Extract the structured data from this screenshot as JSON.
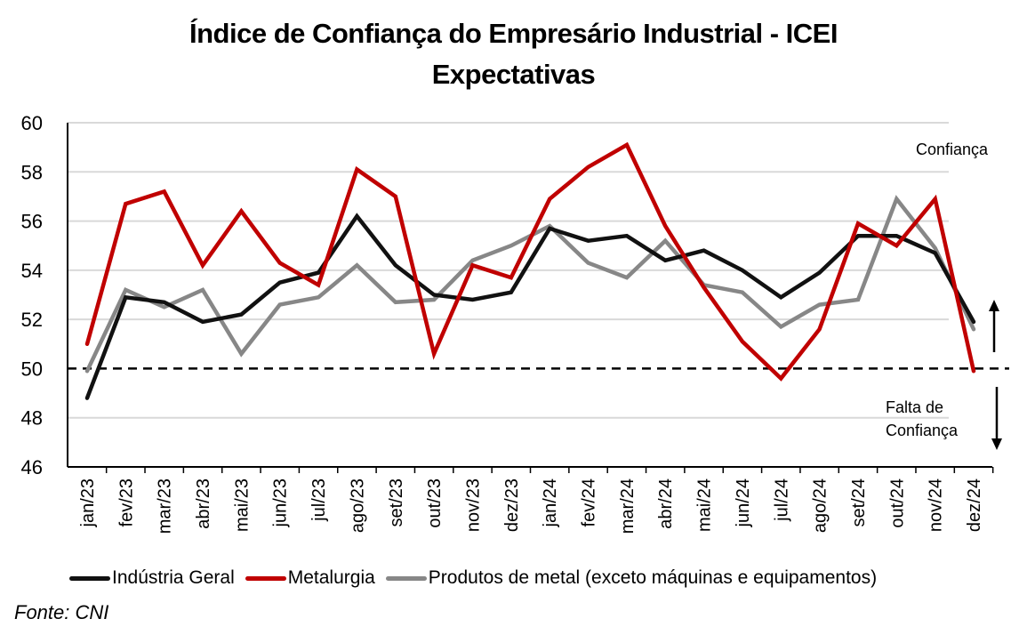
{
  "chart_data": {
    "type": "line",
    "title": "Índice de Confiança do Empresário Industrial - ICEI",
    "subtitle": "Expectativas",
    "xlabel": "",
    "ylabel": "",
    "ylim": [
      46,
      60
    ],
    "yticks": [
      "46",
      "48",
      "50",
      "52",
      "54",
      "56",
      "58",
      "60"
    ],
    "grid": true,
    "legend_position": "bottom",
    "categories": [
      "jan/23",
      "fev/23",
      "mar/23",
      "abr/23",
      "mai/23",
      "jun/23",
      "jul/23",
      "ago/23",
      "set/23",
      "out/23",
      "nov/23",
      "dez/23",
      "jan/24",
      "fev/24",
      "mar/24",
      "abr/24",
      "mai/24",
      "jun/24",
      "jul/24",
      "ago/24",
      "set/24",
      "out/24",
      "nov/24",
      "dez/24"
    ],
    "series": [
      {
        "name": "Indústria Geral",
        "color": "#111111",
        "values": [
          48.8,
          52.9,
          52.7,
          51.9,
          52.2,
          53.5,
          53.9,
          56.2,
          54.2,
          53.0,
          52.8,
          53.1,
          55.7,
          55.2,
          55.4,
          54.4,
          54.8,
          54.0,
          52.9,
          53.9,
          55.4,
          55.4,
          54.7,
          51.9
        ]
      },
      {
        "name": "Metalurgia",
        "color": "#C00000",
        "values": [
          51.0,
          56.7,
          57.2,
          54.2,
          56.4,
          54.3,
          53.4,
          58.1,
          57.0,
          50.6,
          54.2,
          53.7,
          56.9,
          58.2,
          59.1,
          55.8,
          53.3,
          51.1,
          49.6,
          51.6,
          55.9,
          55.0,
          56.9,
          49.9
        ]
      },
      {
        "name": "Produtos de metal (exceto máquinas e equipamentos)",
        "color": "#878787",
        "values": [
          49.9,
          53.2,
          52.5,
          53.2,
          50.6,
          52.6,
          52.9,
          54.2,
          52.7,
          52.8,
          54.4,
          55.0,
          55.8,
          54.3,
          53.7,
          55.2,
          53.4,
          53.1,
          51.7,
          52.6,
          52.8,
          56.9,
          54.9,
          51.6
        ]
      }
    ],
    "reference_line": {
      "value": 50,
      "style": "dashed"
    },
    "annotations": {
      "above": "Confiança",
      "below_line1": "Falta de",
      "below_line2": "Confiança"
    },
    "source": "Fonte: CNI"
  }
}
